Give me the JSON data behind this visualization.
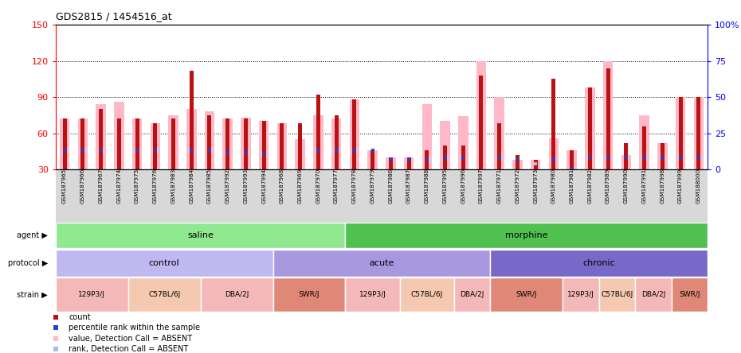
{
  "title": "GDS2815 / 1454516_at",
  "samples": [
    "GSM187965",
    "GSM187966",
    "GSM187967",
    "GSM187974",
    "GSM187975",
    "GSM187976",
    "GSM187983",
    "GSM187984",
    "GSM187985",
    "GSM187992",
    "GSM187993",
    "GSM187994",
    "GSM187968",
    "GSM187969",
    "GSM187970",
    "GSM187977",
    "GSM187978",
    "GSM187979",
    "GSM187986",
    "GSM187987",
    "GSM187988",
    "GSM187995",
    "GSM187996",
    "GSM187997",
    "GSM187971",
    "GSM187972",
    "GSM187973",
    "GSM187980",
    "GSM187981",
    "GSM187982",
    "GSM187989",
    "GSM187990",
    "GSM187991",
    "GSM187998",
    "GSM187999",
    "GSM188000"
  ],
  "red_bars": [
    72,
    72,
    80,
    72,
    72,
    68,
    72,
    112,
    75,
    72,
    72,
    70,
    68,
    68,
    92,
    75,
    88,
    46,
    40,
    40,
    46,
    50,
    50,
    108,
    68,
    42,
    38,
    105,
    46,
    98,
    114,
    52,
    66,
    52,
    90,
    90
  ],
  "pink_bars": [
    72,
    72,
    84,
    86,
    72,
    68,
    75,
    80,
    78,
    72,
    73,
    70,
    68,
    55,
    75,
    72,
    88,
    46,
    40,
    40,
    84,
    70,
    74,
    120,
    90,
    38,
    38,
    56,
    46,
    98,
    120,
    42,
    75,
    52,
    90,
    90
  ],
  "blue_squares": [
    46,
    46,
    46,
    null,
    46,
    46,
    null,
    46,
    46,
    44,
    44,
    43,
    null,
    null,
    46,
    46,
    46,
    46,
    38,
    38,
    38,
    40,
    40,
    null,
    40,
    38,
    null,
    38,
    30,
    40,
    40,
    40,
    40,
    40,
    40,
    40
  ],
  "light_blue_squares": [
    null,
    null,
    null,
    null,
    null,
    null,
    null,
    null,
    null,
    null,
    null,
    null,
    null,
    null,
    null,
    null,
    null,
    null,
    null,
    null,
    null,
    null,
    null,
    null,
    null,
    null,
    35,
    null,
    null,
    null,
    null,
    null,
    null,
    null,
    null,
    null
  ],
  "agent_groups": [
    {
      "label": "saline",
      "start": 0,
      "end": 16,
      "color": "#90e890"
    },
    {
      "label": "morphine",
      "start": 16,
      "end": 36,
      "color": "#50c050"
    }
  ],
  "protocol_groups": [
    {
      "label": "control",
      "start": 0,
      "end": 12,
      "color": "#c0b8f0"
    },
    {
      "label": "acute",
      "start": 12,
      "end": 24,
      "color": "#a898e0"
    },
    {
      "label": "chronic",
      "start": 24,
      "end": 36,
      "color": "#7868c8"
    }
  ],
  "strain_groups": [
    {
      "label": "129P3/J",
      "start": 0,
      "end": 4,
      "color": "#f5b8b8"
    },
    {
      "label": "C57BL/6J",
      "start": 4,
      "end": 8,
      "color": "#f5c8b0"
    },
    {
      "label": "DBA/2J",
      "start": 8,
      "end": 12,
      "color": "#f5b8b8"
    },
    {
      "label": "SWR/J",
      "start": 12,
      "end": 16,
      "color": "#e08878"
    },
    {
      "label": "129P3/J",
      "start": 16,
      "end": 19,
      "color": "#f5b8b8"
    },
    {
      "label": "C57BL/6J",
      "start": 19,
      "end": 22,
      "color": "#f5c8b0"
    },
    {
      "label": "DBA/2J",
      "start": 22,
      "end": 24,
      "color": "#f5b8b8"
    },
    {
      "label": "SWR/J",
      "start": 24,
      "end": 28,
      "color": "#e08878"
    },
    {
      "label": "129P3/J",
      "start": 28,
      "end": 30,
      "color": "#f5b8b8"
    },
    {
      "label": "C57BL/6J",
      "start": 30,
      "end": 32,
      "color": "#f5c8b0"
    },
    {
      "label": "DBA/2J",
      "start": 32,
      "end": 34,
      "color": "#f5b8b8"
    },
    {
      "label": "SWR/J",
      "start": 34,
      "end": 36,
      "color": "#e08878"
    }
  ],
  "ylim_left": [
    30,
    150
  ],
  "yticks_left": [
    30,
    60,
    90,
    120,
    150
  ],
  "ylim_right": [
    0,
    100
  ],
  "yticks_right": [
    0,
    25,
    50,
    75,
    100
  ],
  "bar_color_red": "#bb1111",
  "bar_color_pink": "#ffb8c8",
  "square_color_blue": "#2244cc",
  "square_color_light_blue": "#aabbee",
  "chart_bg": "#ffffff",
  "xtick_bg": "#d8d8d8"
}
